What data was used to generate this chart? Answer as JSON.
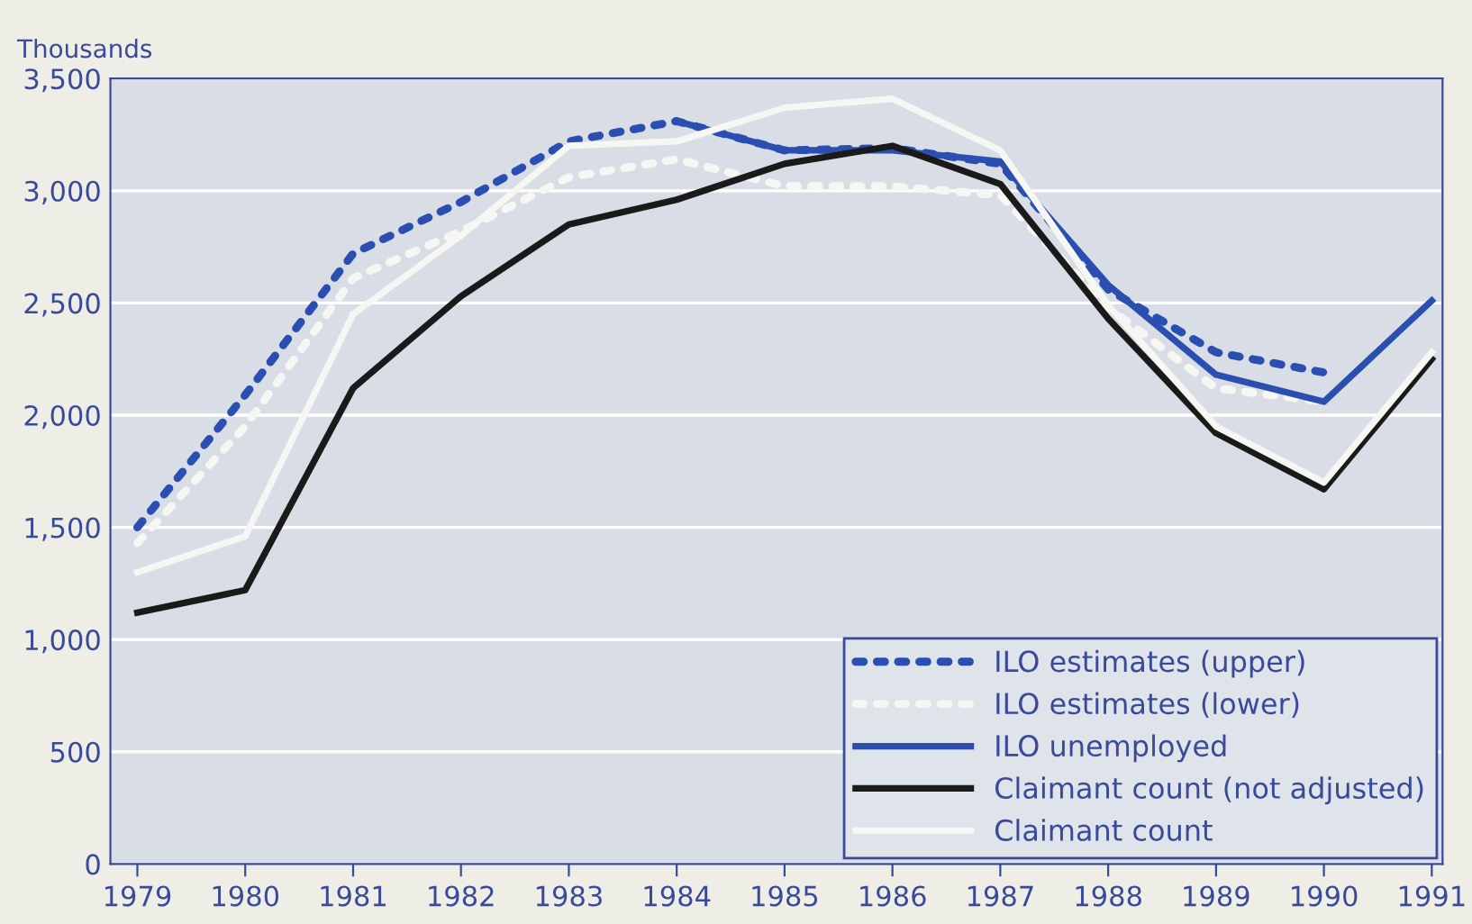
{
  "chart_data": {
    "type": "line",
    "ylabel": "Thousands",
    "categories": [
      "1979",
      "1980",
      "1981",
      "1982",
      "1983",
      "1984",
      "1985",
      "1986",
      "1987",
      "1988",
      "1989",
      "1990",
      "1991"
    ],
    "series": [
      {
        "name": "ILO estimates (upper)",
        "color": "#2a4fb0",
        "line_style": "dotted",
        "values": [
          1500,
          2090,
          2720,
          2950,
          3220,
          3310,
          3180,
          3190,
          3120,
          2560,
          2280,
          2190,
          null
        ]
      },
      {
        "name": "ILO estimates (lower)",
        "color": "#f6f6f2",
        "line_style": "dotted",
        "values": [
          1430,
          1950,
          2610,
          2820,
          3060,
          3140,
          3020,
          3020,
          2980,
          2480,
          2120,
          2060,
          null
        ]
      },
      {
        "name": "ILO unemployed",
        "color": "#2a4fb0",
        "line_style": "solid",
        "values": [
          null,
          null,
          null,
          null,
          null,
          3310,
          3180,
          3180,
          3130,
          2580,
          2180,
          2060,
          2510
        ]
      },
      {
        "name": "Claimant count (not adjusted)",
        "color": "#1a1a1a",
        "line_style": "solid",
        "values": [
          1120,
          1220,
          2120,
          2530,
          2850,
          2960,
          3120,
          3200,
          3030,
          2430,
          1920,
          1670,
          2250
        ]
      },
      {
        "name": "Claimant count",
        "color": "#f6f6f2",
        "line_style": "solid",
        "values": [
          1300,
          1460,
          2450,
          2800,
          3200,
          3220,
          3370,
          3410,
          3180,
          2490,
          1950,
          1700,
          2280
        ]
      }
    ],
    "ylim": [
      0,
      3500
    ],
    "yticks": [
      0,
      {
        "value": 500,
        "label": "500"
      },
      {
        "value": 1000,
        "label": "1,000"
      },
      {
        "value": 1500,
        "label": "1,500"
      },
      {
        "value": 2000,
        "label": "2,000"
      },
      {
        "value": 2500,
        "label": "2,500"
      },
      {
        "value": 3000,
        "label": "3,000"
      },
      {
        "value": 3500,
        "label": "3,500"
      }
    ],
    "grid": "y",
    "legend": "bottom right"
  }
}
